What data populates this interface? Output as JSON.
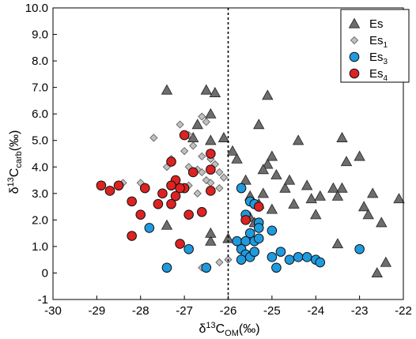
{
  "chart_data": {
    "type": "scatter",
    "xlabel": "δ13COM(‰)",
    "ylabel": "δ13Ccarb(‰)",
    "xlim": [
      -30,
      -22
    ],
    "ylim": [
      -1,
      10
    ],
    "x_ticks": [
      "-30",
      "-29",
      "-28",
      "-27",
      "-26",
      "-25",
      "-24",
      "-23",
      "-22"
    ],
    "y_ticks": [
      "-1",
      "0",
      "1.0",
      "2.0",
      "3.0",
      "4.0",
      "5.0",
      "6.0",
      "7.0",
      "8.0",
      "9.0",
      "10.0"
    ],
    "vertical_line": -26,
    "legend_position": "top-right",
    "series": [
      {
        "name": "Es",
        "name_base": "Es",
        "name_sub": "",
        "marker": "triangle",
        "color": "#6d6d6d",
        "points": [
          [
            -27.4,
            6.9
          ],
          [
            -26.5,
            6.9
          ],
          [
            -26.3,
            6.8
          ],
          [
            -25.1,
            6.7
          ],
          [
            -26.4,
            6.0
          ],
          [
            -26.7,
            5.6
          ],
          [
            -25.3,
            5.6
          ],
          [
            -26.8,
            5.1
          ],
          [
            -26.4,
            5.0
          ],
          [
            -26.1,
            5.1
          ],
          [
            -25.9,
            4.6
          ],
          [
            -25.8,
            4.3
          ],
          [
            -25.0,
            4.4
          ],
          [
            -25.1,
            4.1
          ],
          [
            -24.4,
            5.0
          ],
          [
            -23.4,
            5.1
          ],
          [
            -23.0,
            4.4
          ],
          [
            -23.3,
            4.2
          ],
          [
            -25.2,
            3.9
          ],
          [
            -24.9,
            3.7
          ],
          [
            -24.7,
            3.2
          ],
          [
            -24.6,
            3.5
          ],
          [
            -24.5,
            2.6
          ],
          [
            -24.2,
            3.3
          ],
          [
            -24.1,
            2.8
          ],
          [
            -23.9,
            2.9
          ],
          [
            -23.6,
            3.2
          ],
          [
            -23.4,
            3.2
          ],
          [
            -23.5,
            2.9
          ],
          [
            -22.7,
            3.0
          ],
          [
            -22.9,
            2.5
          ],
          [
            -22.8,
            2.2
          ],
          [
            -22.1,
            2.8
          ],
          [
            -22.5,
            1.9
          ],
          [
            -25.6,
            3.5
          ],
          [
            -25.5,
            2.9
          ],
          [
            -25.2,
            3.0
          ],
          [
            -25.0,
            2.4
          ],
          [
            -25.3,
            2.6
          ],
          [
            -25.5,
            2.1
          ],
          [
            -25.4,
            1.9
          ],
          [
            -24.0,
            2.2
          ],
          [
            -26.4,
            1.2
          ],
          [
            -26.4,
            1.5
          ],
          [
            -27.4,
            1.8
          ],
          [
            -26.0,
            1.3
          ],
          [
            -23.5,
            1.1
          ],
          [
            -22.6,
            0.0
          ],
          [
            -22.4,
            0.4
          ]
        ]
      },
      {
        "name": "Es1",
        "name_base": "Es",
        "name_sub": "1",
        "marker": "diamond",
        "color": "#c0c0c0",
        "points": [
          [
            -26.6,
            5.9
          ],
          [
            -26.5,
            5.7
          ],
          [
            -27.1,
            5.6
          ],
          [
            -27.7,
            5.1
          ],
          [
            -26.9,
            5.2
          ],
          [
            -26.8,
            4.8
          ],
          [
            -26.6,
            4.4
          ],
          [
            -26.4,
            4.3
          ],
          [
            -27.0,
            4.6
          ],
          [
            -27.3,
            4.3
          ],
          [
            -27.4,
            4.0
          ],
          [
            -26.9,
            4.0
          ],
          [
            -26.7,
            3.9
          ],
          [
            -26.6,
            3.8
          ],
          [
            -26.3,
            4.1
          ],
          [
            -26.2,
            3.8
          ],
          [
            -26.5,
            3.5
          ],
          [
            -26.1,
            3.6
          ],
          [
            -28.0,
            3.4
          ],
          [
            -28.4,
            3.4
          ],
          [
            -26.9,
            3.3
          ],
          [
            -26.7,
            3.0
          ],
          [
            -26.4,
            3.4
          ],
          [
            -26.2,
            3.2
          ],
          [
            -26.6,
            0.2
          ],
          [
            -26.2,
            0.4
          ],
          [
            -26.0,
            0.5
          ]
        ]
      },
      {
        "name": "Es3",
        "name_base": "Es",
        "name_sub": "3",
        "marker": "circle",
        "color": "#1e9be0",
        "points": [
          [
            -25.7,
            3.2
          ],
          [
            -25.5,
            2.7
          ],
          [
            -25.4,
            2.6
          ],
          [
            -25.6,
            2.2
          ],
          [
            -25.3,
            1.9
          ],
          [
            -25.5,
            1.5
          ],
          [
            -25.3,
            1.7
          ],
          [
            -25.0,
            1.6
          ],
          [
            -25.8,
            1.2
          ],
          [
            -25.6,
            1.2
          ],
          [
            -25.4,
            1.2
          ],
          [
            -25.3,
            1.3
          ],
          [
            -25.7,
            0.9
          ],
          [
            -25.6,
            0.7
          ],
          [
            -25.5,
            0.6
          ],
          [
            -25.7,
            0.5
          ],
          [
            -25.4,
            0.8
          ],
          [
            -25.0,
            0.6
          ],
          [
            -24.8,
            0.8
          ],
          [
            -24.6,
            0.5
          ],
          [
            -24.4,
            0.6
          ],
          [
            -24.2,
            0.6
          ],
          [
            -24.0,
            0.5
          ],
          [
            -23.9,
            0.4
          ],
          [
            -24.9,
            0.2
          ],
          [
            -23.0,
            0.9
          ],
          [
            -27.8,
            1.7
          ],
          [
            -26.9,
            0.9
          ],
          [
            -27.4,
            0.2
          ],
          [
            -26.5,
            0.2
          ]
        ]
      },
      {
        "name": "Es4",
        "name_base": "Es",
        "name_sub": "4",
        "marker": "circle",
        "color": "#dd2222",
        "points": [
          [
            -27.0,
            5.2
          ],
          [
            -26.4,
            4.5
          ],
          [
            -26.4,
            3.9
          ],
          [
            -27.3,
            4.2
          ],
          [
            -26.8,
            3.8
          ],
          [
            -27.2,
            3.5
          ],
          [
            -27.0,
            3.2
          ],
          [
            -27.1,
            3.2
          ],
          [
            -27.2,
            2.9
          ],
          [
            -27.3,
            3.3
          ],
          [
            -27.5,
            3.0
          ],
          [
            -27.6,
            2.6
          ],
          [
            -27.9,
            3.2
          ],
          [
            -28.2,
            2.7
          ],
          [
            -28.5,
            3.3
          ],
          [
            -28.7,
            3.1
          ],
          [
            -28.9,
            3.3
          ],
          [
            -27.3,
            2.6
          ],
          [
            -26.9,
            2.2
          ],
          [
            -26.6,
            2.3
          ],
          [
            -26.4,
            3.1
          ],
          [
            -28.0,
            2.2
          ],
          [
            -28.2,
            1.4
          ],
          [
            -27.1,
            1.1
          ],
          [
            -25.6,
            2.0
          ],
          [
            -25.3,
            2.5
          ]
        ]
      }
    ]
  }
}
